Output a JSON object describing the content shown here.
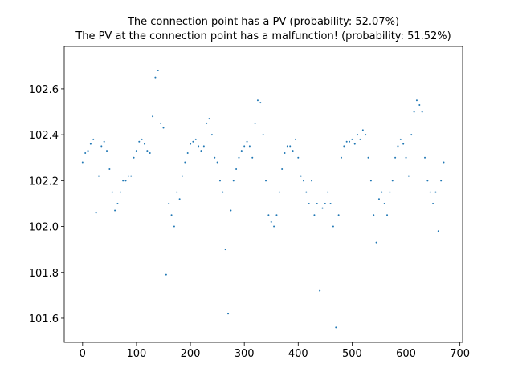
{
  "chart_data": {
    "type": "scatter",
    "title": "The connection point has a PV (probability: 52.07%)",
    "subtitle": "The PV at the connection point has a malfunction! (probability: 51.52%)",
    "color": "#1f77b4",
    "x": [
      0,
      5,
      10,
      15,
      20,
      25,
      30,
      35,
      40,
      45,
      50,
      55,
      60,
      65,
      70,
      75,
      80,
      85,
      90,
      95,
      100,
      105,
      110,
      115,
      120,
      125,
      130,
      135,
      140,
      145,
      150,
      155,
      160,
      165,
      170,
      175,
      180,
      185,
      190,
      195,
      200,
      205,
      210,
      215,
      220,
      225,
      230,
      235,
      240,
      245,
      250,
      255,
      260,
      265,
      270,
      275,
      280,
      285,
      290,
      295,
      300,
      305,
      310,
      315,
      320,
      325,
      330,
      335,
      340,
      345,
      350,
      355,
      360,
      365,
      370,
      375,
      380,
      385,
      390,
      395,
      400,
      405,
      410,
      415,
      420,
      425,
      430,
      435,
      440,
      445,
      450,
      455,
      460,
      465,
      470,
      475,
      480,
      485,
      490,
      495,
      500,
      505,
      510,
      515,
      520,
      525,
      530,
      535,
      540,
      545,
      550,
      555,
      560,
      565,
      570,
      575,
      580,
      585,
      590,
      595,
      600,
      605,
      610,
      615,
      620,
      625,
      630,
      635,
      640,
      645,
      650,
      655,
      660,
      665,
      670
    ],
    "values": [
      102.28,
      102.32,
      102.33,
      102.36,
      102.38,
      102.06,
      102.22,
      102.35,
      102.37,
      102.33,
      102.25,
      102.15,
      102.07,
      102.1,
      102.15,
      102.2,
      102.2,
      102.22,
      102.22,
      102.3,
      102.33,
      102.37,
      102.38,
      102.36,
      102.33,
      102.32,
      102.48,
      102.65,
      102.68,
      102.45,
      102.43,
      101.79,
      102.1,
      102.05,
      102.0,
      102.15,
      102.12,
      102.22,
      102.28,
      102.32,
      102.36,
      102.37,
      102.38,
      102.35,
      102.33,
      102.35,
      102.45,
      102.47,
      102.4,
      102.3,
      102.28,
      102.2,
      102.15,
      101.9,
      101.62,
      102.07,
      102.2,
      102.25,
      102.3,
      102.33,
      102.35,
      102.37,
      102.35,
      102.3,
      102.45,
      102.55,
      102.54,
      102.4,
      102.2,
      102.05,
      102.02,
      102.0,
      102.05,
      102.15,
      102.25,
      102.32,
      102.35,
      102.35,
      102.33,
      102.38,
      102.3,
      102.22,
      102.2,
      102.15,
      102.1,
      102.2,
      102.05,
      102.1,
      101.72,
      102.08,
      102.1,
      102.15,
      102.1,
      102.0,
      101.56,
      102.05,
      102.3,
      102.35,
      102.37,
      102.37,
      102.38,
      102.36,
      102.4,
      102.38,
      102.42,
      102.4,
      102.3,
      102.2,
      102.05,
      101.93,
      102.12,
      102.15,
      102.1,
      102.05,
      102.15,
      102.2,
      102.3,
      102.35,
      102.38,
      102.36,
      102.3,
      102.22,
      102.4,
      102.5,
      102.55,
      102.53,
      102.5,
      102.3,
      102.2,
      102.15,
      102.1,
      102.15,
      101.98,
      102.2,
      102.28
    ],
    "xlim": [
      -34,
      705
    ],
    "ylim": [
      101.495,
      102.785
    ],
    "xticks": [
      0,
      100,
      200,
      300,
      400,
      500,
      600,
      700
    ],
    "yticks": [
      101.6,
      101.8,
      {
        "value": 102,
        "label": "102.0"
      },
      102.2,
      102.4,
      102.6
    ]
  }
}
